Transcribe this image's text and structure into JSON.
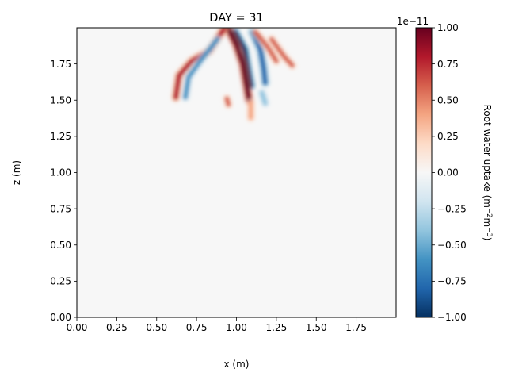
{
  "chart_data": {
    "type": "heatmap",
    "title": "DAY = 31",
    "xlabel": "x (m)",
    "ylabel": "z (m)",
    "xlim": [
      0,
      2
    ],
    "ylim": [
      0,
      2
    ],
    "x_ticks": [
      "0.00",
      "0.25",
      "0.50",
      "0.75",
      "1.00",
      "1.25",
      "1.50",
      "1.75"
    ],
    "y_ticks": [
      "0.00",
      "0.25",
      "0.50",
      "0.75",
      "1.00",
      "1.25",
      "1.50",
      "1.75"
    ],
    "colorbar": {
      "label": "Root water uptake (m⁻²m⁻³)",
      "label_main": "Root water uptake (m",
      "sup1": "−2",
      "label_mid": "m",
      "sup2": "−3",
      "label_end": ")",
      "offset_text": "1e−11",
      "colormap": "RdBu_r",
      "range": [
        -1.0,
        1.0
      ],
      "ticks": [
        "−1.00",
        "−0.75",
        "−0.50",
        "−0.25",
        "0.00",
        "0.25",
        "0.50",
        "0.75",
        "1.00"
      ]
    },
    "features": [
      {
        "sign": "negative",
        "strength": 1.0,
        "points": [
          [
            0.99,
            1.97
          ],
          [
            1.05,
            1.85
          ],
          [
            1.07,
            1.72
          ],
          [
            1.09,
            1.6
          ]
        ]
      },
      {
        "sign": "positive",
        "strength": 1.0,
        "points": [
          [
            0.95,
            1.99
          ],
          [
            1.0,
            1.88
          ],
          [
            1.04,
            1.75
          ],
          [
            1.06,
            1.62
          ],
          [
            1.08,
            1.5
          ]
        ]
      },
      {
        "sign": "negative",
        "strength": 0.8,
        "points": [
          [
            1.1,
            1.97
          ],
          [
            1.15,
            1.85
          ],
          [
            1.17,
            1.72
          ],
          [
            1.18,
            1.62
          ]
        ]
      },
      {
        "sign": "positive",
        "strength": 0.6,
        "points": [
          [
            1.12,
            1.97
          ],
          [
            1.2,
            1.86
          ],
          [
            1.25,
            1.77
          ]
        ]
      },
      {
        "sign": "positive",
        "strength": 0.7,
        "points": [
          [
            0.92,
            1.99
          ],
          [
            0.83,
            1.84
          ],
          [
            0.72,
            1.77
          ],
          [
            0.64,
            1.67
          ],
          [
            0.62,
            1.52
          ]
        ]
      },
      {
        "sign": "negative",
        "strength": 0.45,
        "points": [
          [
            0.88,
            1.92
          ],
          [
            0.78,
            1.78
          ],
          [
            0.7,
            1.66
          ],
          [
            0.68,
            1.52
          ]
        ]
      },
      {
        "sign": "positive",
        "strength": 0.45,
        "points": [
          [
            1.22,
            1.92
          ],
          [
            1.3,
            1.8
          ],
          [
            1.35,
            1.74
          ]
        ]
      },
      {
        "sign": "positive",
        "strength": 0.35,
        "points": [
          [
            1.09,
            1.48
          ],
          [
            1.09,
            1.38
          ]
        ]
      },
      {
        "sign": "positive",
        "strength": 0.4,
        "points": [
          [
            0.94,
            1.51
          ],
          [
            0.95,
            1.47
          ]
        ]
      },
      {
        "sign": "negative",
        "strength": 0.35,
        "points": [
          [
            1.16,
            1.55
          ],
          [
            1.18,
            1.48
          ]
        ]
      }
    ]
  }
}
